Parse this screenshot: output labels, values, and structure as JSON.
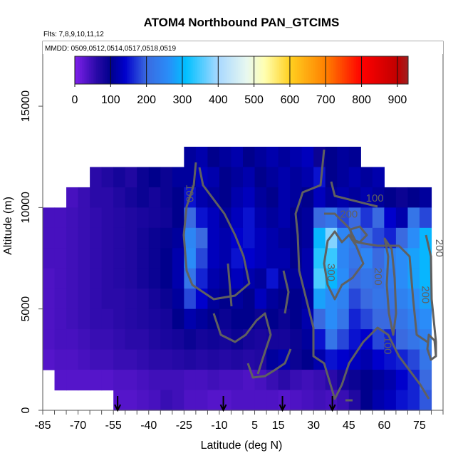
{
  "chart_data": {
    "type": "heatmap",
    "title": "ATOM4 Northbound PAN_GTCIMS",
    "subtitle": "Flts: 7,8,9,10,11,12",
    "annotation": "MMDD: 0509,0512,0514,0517,0518,0519",
    "xlabel": "Latitude (deg N)",
    "ylabel": "Altitude (m)",
    "xlim": [
      -85,
      85
    ],
    "ylim": [
      0,
      18200
    ],
    "x_ticks": [
      -85,
      -70,
      -55,
      -40,
      -25,
      -10,
      5,
      15,
      30,
      45,
      60,
      75
    ],
    "x_tick_labels": [
      "-85",
      "-70",
      "-55",
      "-40",
      "-25",
      "-10",
      "5",
      "15",
      "30",
      "45",
      "60",
      "75"
    ],
    "y_ticks": [
      0,
      5000,
      10000,
      15000
    ],
    "y_tick_labels": [
      "0",
      "5000",
      "10000",
      "15000"
    ],
    "colorbar": {
      "range": [
        0,
        930
      ],
      "ticks": [
        0,
        100,
        200,
        300,
        400,
        500,
        600,
        700,
        800,
        900
      ],
      "tick_labels": [
        "0",
        "100",
        "200",
        "300",
        "400",
        "500",
        "600",
        "700",
        "800",
        "900"
      ],
      "stops": [
        {
          "v": 0,
          "c": "#8020ec"
        },
        {
          "v": 60,
          "c": "#2a0aa8"
        },
        {
          "v": 100,
          "c": "#00008c"
        },
        {
          "v": 140,
          "c": "#0000cc"
        },
        {
          "v": 200,
          "c": "#3a6ae0"
        },
        {
          "v": 260,
          "c": "#2a8cf8"
        },
        {
          "v": 310,
          "c": "#00c0ff"
        },
        {
          "v": 400,
          "c": "#a8d8ff"
        },
        {
          "v": 480,
          "c": "#e8f8f0"
        },
        {
          "v": 530,
          "c": "#ffffb0"
        },
        {
          "v": 600,
          "c": "#ffd020"
        },
        {
          "v": 700,
          "c": "#ff8000"
        },
        {
          "v": 800,
          "c": "#ff0000"
        },
        {
          "v": 900,
          "c": "#c00000"
        },
        {
          "v": 930,
          "c": "#a02020"
        }
      ]
    },
    "lat_bin_starts": [
      -85,
      -80,
      -75,
      -70,
      -65,
      -60,
      -55,
      -50,
      -45,
      -40,
      -35,
      -30,
      -25,
      -20,
      -15,
      -10,
      -5,
      0,
      5,
      10,
      15,
      20,
      25,
      30,
      35,
      40,
      45,
      50,
      55,
      60,
      65,
      70,
      75
    ],
    "lat_bin_width": 5,
    "alt_bin_starts_top_down": [
      12000,
      11000,
      10000,
      9000,
      8000,
      7000,
      6000,
      5000,
      4000,
      3000,
      2000,
      1000,
      0
    ],
    "alt_bin_height": 1000,
    "values": [
      [
        null,
        null,
        null,
        null,
        null,
        null,
        null,
        null,
        null,
        null,
        null,
        null,
        110,
        120,
        100,
        110,
        120,
        100,
        110,
        120,
        110,
        120,
        130,
        90,
        100,
        110,
        105,
        null,
        null,
        null,
        null,
        null,
        null
      ],
      [
        null,
        null,
        null,
        null,
        60,
        70,
        80,
        70,
        90,
        100,
        90,
        110,
        110,
        130,
        120,
        100,
        110,
        120,
        100,
        110,
        120,
        110,
        120,
        150,
        100,
        110,
        120,
        110,
        120,
        null,
        null,
        null,
        null
      ],
      [
        null,
        null,
        40,
        50,
        60,
        60,
        70,
        80,
        90,
        80,
        90,
        100,
        150,
        120,
        110,
        100,
        120,
        130,
        110,
        100,
        120,
        110,
        100,
        130,
        110,
        120,
        110,
        120,
        110,
        100,
        90,
        100,
        110
      ],
      [
        40,
        40,
        45,
        50,
        55,
        60,
        65,
        70,
        75,
        80,
        85,
        100,
        200,
        150,
        130,
        110,
        130,
        150,
        120,
        110,
        120,
        100,
        110,
        200,
        220,
        180,
        200,
        170,
        200,
        140,
        120,
        220,
        180
      ],
      [
        40,
        40,
        45,
        50,
        55,
        60,
        65,
        70,
        80,
        90,
        95,
        110,
        250,
        200,
        130,
        120,
        140,
        150,
        130,
        120,
        110,
        100,
        110,
        300,
        380,
        250,
        230,
        200,
        180,
        160,
        200,
        260,
        300
      ],
      [
        40,
        40,
        45,
        50,
        55,
        60,
        65,
        70,
        80,
        90,
        100,
        120,
        260,
        180,
        130,
        120,
        150,
        140,
        130,
        120,
        120,
        100,
        120,
        330,
        340,
        250,
        220,
        250,
        200,
        240,
        260,
        280,
        300
      ],
      [
        35,
        40,
        45,
        50,
        55,
        60,
        65,
        70,
        80,
        90,
        100,
        120,
        220,
        160,
        120,
        110,
        130,
        120,
        110,
        150,
        110,
        110,
        120,
        350,
        300,
        260,
        200,
        220,
        210,
        230,
        260,
        280,
        300
      ],
      [
        35,
        40,
        45,
        50,
        55,
        60,
        60,
        65,
        70,
        80,
        90,
        110,
        180,
        140,
        110,
        100,
        110,
        100,
        130,
        110,
        100,
        100,
        110,
        280,
        260,
        240,
        180,
        200,
        220,
        220,
        240,
        260,
        280
      ],
      [
        35,
        40,
        45,
        50,
        55,
        55,
        60,
        65,
        70,
        75,
        80,
        100,
        120,
        110,
        100,
        90,
        100,
        100,
        90,
        100,
        90,
        100,
        120,
        200,
        260,
        220,
        160,
        180,
        200,
        200,
        220,
        240,
        260
      ],
      [
        35,
        40,
        40,
        45,
        50,
        50,
        55,
        60,
        60,
        70,
        75,
        80,
        90,
        80,
        85,
        80,
        90,
        80,
        75,
        80,
        80,
        90,
        110,
        150,
        220,
        180,
        150,
        140,
        180,
        160,
        200,
        220,
        240
      ],
      [
        30,
        35,
        35,
        40,
        45,
        45,
        50,
        50,
        55,
        60,
        60,
        65,
        70,
        65,
        70,
        65,
        70,
        65,
        70,
        110,
        120,
        90,
        100,
        120,
        150,
        140,
        130,
        120,
        140,
        150,
        160,
        180,
        220
      ],
      [
        null,
        30,
        30,
        30,
        30,
        30,
        35,
        35,
        40,
        45,
        45,
        45,
        40,
        40,
        45,
        40,
        40,
        35,
        40,
        50,
        60,
        50,
        45,
        50,
        60,
        80,
        90,
        100,
        110,
        120,
        140,
        160,
        200
      ],
      [
        null,
        null,
        null,
        null,
        null,
        null,
        30,
        30,
        35,
        40,
        50,
        45,
        35,
        35,
        30,
        30,
        35,
        35,
        35,
        35,
        30,
        35,
        40,
        45,
        40,
        50,
        70,
        100,
        120,
        130,
        150,
        160,
        190
      ]
    ],
    "contour_labels": [
      {
        "text": "100",
        "lat": -24,
        "alt": 10700,
        "rot": 90
      },
      {
        "text": "100",
        "lat": 56,
        "alt": 10300,
        "rot": 0
      },
      {
        "text": "200",
        "lat": 45,
        "alt": 9500,
        "rot": 0
      },
      {
        "text": "300",
        "lat": 36,
        "alt": 6800,
        "rot": 90
      },
      {
        "text": "200",
        "lat": 56,
        "alt": 6600,
        "rot": 90
      },
      {
        "text": "200",
        "lat": 76,
        "alt": 5700,
        "rot": 90
      },
      {
        "text": "200",
        "lat": 82,
        "alt": 8000,
        "rot": 90
      },
      {
        "text": "100",
        "lat": 60,
        "alt": 3200,
        "rot": 90
      }
    ],
    "flight_markers_lat": [
      -53.2,
      -8.3,
      16.8,
      38.0
    ]
  }
}
